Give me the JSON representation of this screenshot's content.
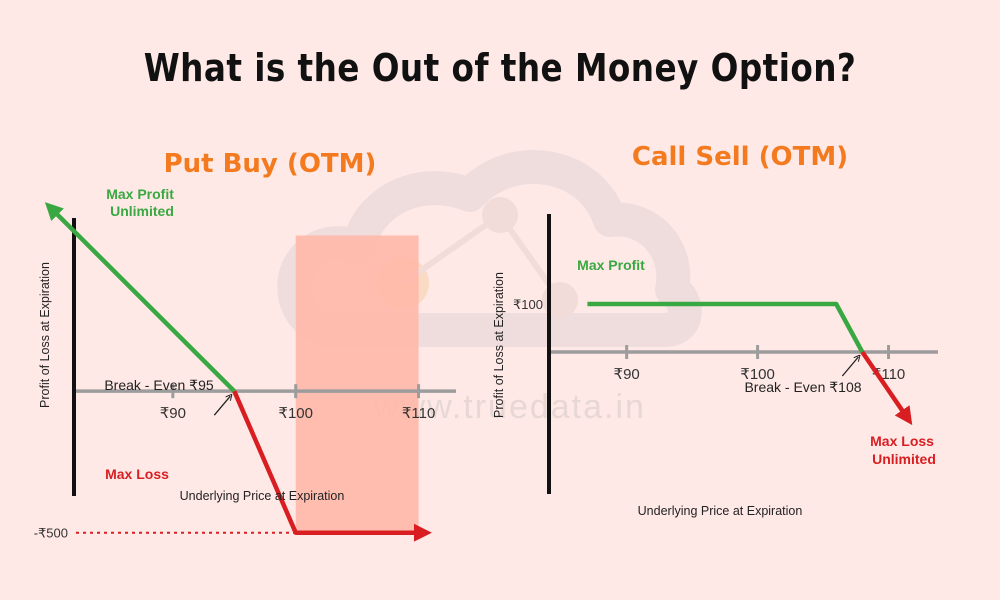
{
  "page": {
    "title": "What is the Out of the Money Option?",
    "watermark": "www.truedata.in"
  },
  "colors": {
    "accent_orange": "#f47a1f",
    "profit_green": "#3aa842",
    "loss_red": "#d91e22",
    "axis_gray": "#9c9c9c",
    "shade_salmon": "#ffb8a9",
    "background": "#ffe9e6"
  },
  "chart_data": [
    {
      "type": "line",
      "title": "Put Buy (OTM)",
      "xlabel": "Underlying Price at Expiration",
      "ylabel": "Profit of Loss at Expiration",
      "x_ticks": [
        {
          "value": 90,
          "label": "₹90"
        },
        {
          "value": 100,
          "label": "₹100"
        },
        {
          "value": 110,
          "label": "₹110"
        }
      ],
      "y_ticks": [
        {
          "value": -500,
          "label": "-₹500"
        }
      ],
      "xlim": [
        80,
        115
      ],
      "ylim": [
        -600,
        700
      ],
      "series": [
        {
          "segment": "profit",
          "color": "#3aa842",
          "points": [
            [
              80,
              650
            ],
            [
              95,
              0
            ]
          ]
        },
        {
          "segment": "loss",
          "color": "#d91e22",
          "points": [
            [
              95,
              0
            ],
            [
              100,
              -500
            ],
            [
              110.5,
              -500
            ]
          ]
        }
      ],
      "shaded_region": {
        "x": [
          100,
          110
        ],
        "y": [
          -500,
          550
        ]
      },
      "reference_line": {
        "y": -500
      },
      "annotations": {
        "top": {
          "lines": [
            "Max Profit",
            "Unlimited"
          ],
          "color": "green"
        },
        "bottom": {
          "lines": [
            "Max Loss"
          ],
          "color": "red"
        },
        "break_even": {
          "label": "Break - Even ₹95",
          "x": 95
        }
      }
    },
    {
      "type": "line",
      "title": "Call Sell (OTM)",
      "xlabel": "Underlying Price at Expiration",
      "ylabel": "Profit of Loss at Expiration",
      "x_ticks": [
        {
          "value": 90,
          "label": "₹90"
        },
        {
          "value": 100,
          "label": "₹100"
        },
        {
          "value": 110,
          "label": "₹110"
        }
      ],
      "y_ticks": [
        {
          "value": 100,
          "label": "₹100"
        }
      ],
      "xlim": [
        83,
        115
      ],
      "ylim": [
        -150,
        200
      ],
      "series": [
        {
          "segment": "profit",
          "color": "#3aa842",
          "points": [
            [
              87,
              100
            ],
            [
              106,
              100
            ],
            [
              108,
              0
            ]
          ]
        },
        {
          "segment": "loss",
          "color": "#d91e22",
          "points": [
            [
              108,
              0
            ],
            [
              111.5,
              -140
            ]
          ]
        }
      ],
      "annotations": {
        "top": {
          "lines": [
            "Max Profit"
          ],
          "color": "green"
        },
        "bottom": {
          "lines": [
            "Max Loss",
            "Unlimited"
          ],
          "color": "red"
        },
        "break_even": {
          "label": "Break - Even ₹108",
          "x": 108
        }
      }
    }
  ]
}
